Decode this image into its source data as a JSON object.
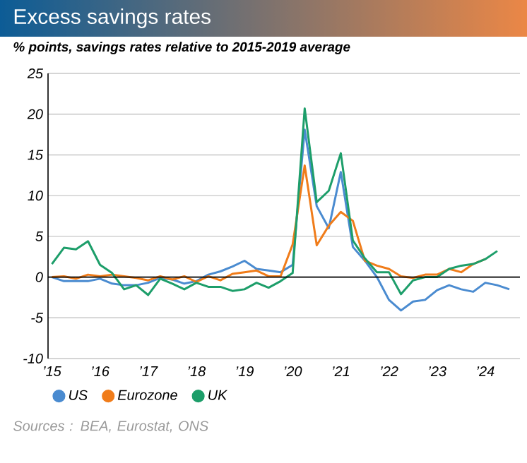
{
  "chart_data": {
    "type": "line",
    "title": "Excess savings rates",
    "subtitle": "% points, savings rates relative to 2015-2019 average",
    "xlim": [
      2014.92,
      2024.72
    ],
    "ylim": [
      -10,
      25
    ],
    "xticks": [
      {
        "value": 2015,
        "label": "’15"
      },
      {
        "value": 2016,
        "label": "’16"
      },
      {
        "value": 2017,
        "label": "’17"
      },
      {
        "value": 2018,
        "label": "’18"
      },
      {
        "value": 2019,
        "label": "’19"
      },
      {
        "value": 2020,
        "label": "’20"
      },
      {
        "value": 2021,
        "label": "’21"
      },
      {
        "value": 2022,
        "label": "’22"
      },
      {
        "value": 2023,
        "label": "’23"
      },
      {
        "value": 2024,
        "label": "’24"
      }
    ],
    "yticks": [
      -10,
      -5,
      0,
      5,
      10,
      15,
      20,
      25
    ],
    "grid": "y",
    "legend": "bottom",
    "ref_lines": [
      {
        "axis": "y",
        "value": 0,
        "color": "#000000"
      }
    ],
    "annotations": [
      "Sources : BEA, Eurostat, ONS"
    ],
    "series": [
      {
        "name": "US",
        "color": "#4a8bd0",
        "x": [
          2015.0,
          2015.25,
          2015.5,
          2015.75,
          2016.0,
          2016.25,
          2016.5,
          2016.75,
          2017.0,
          2017.25,
          2017.5,
          2017.75,
          2018.0,
          2018.25,
          2018.5,
          2018.75,
          2019.0,
          2019.25,
          2019.5,
          2019.75,
          2020.0,
          2020.25,
          2020.5,
          2020.75,
          2021.0,
          2021.25,
          2021.5,
          2021.75,
          2022.0,
          2022.25,
          2022.5,
          2022.75,
          2023.0,
          2023.25,
          2023.5,
          2023.75,
          2024.0,
          2024.25,
          2024.5
        ],
        "values": [
          0,
          -0.5,
          -0.5,
          -0.5,
          -0.2,
          -0.8,
          -1.0,
          -1.0,
          -0.7,
          -0.1,
          -0.3,
          -0.8,
          -0.5,
          0.3,
          0.7,
          1.3,
          2.0,
          1.0,
          0.8,
          0.6,
          1.5,
          18.1,
          8.7,
          6.0,
          12.9,
          3.7,
          2.0,
          0,
          -2.8,
          -4.1,
          -3.0,
          -2.8,
          -1.6,
          -1.0,
          -1.5,
          -1.8,
          -0.7,
          -1.0,
          -1.5
        ]
      },
      {
        "name": "Eurozone",
        "color": "#f07c1a",
        "x": [
          2015.0,
          2015.25,
          2015.5,
          2015.75,
          2016.0,
          2016.25,
          2016.5,
          2016.75,
          2017.0,
          2017.25,
          2017.5,
          2017.75,
          2018.0,
          2018.25,
          2018.5,
          2018.75,
          2019.0,
          2019.25,
          2019.5,
          2019.75,
          2020.0,
          2020.25,
          2020.5,
          2020.75,
          2021.0,
          2021.25,
          2021.5,
          2021.75,
          2022.0,
          2022.25,
          2022.5,
          2022.75,
          2023.0,
          2023.25,
          2023.5,
          2023.75,
          2024.0
        ],
        "values": [
          0,
          0.1,
          -0.2,
          0.3,
          0.1,
          0.3,
          0.1,
          -0.1,
          -0.4,
          0.1,
          -0.3,
          0.1,
          -0.6,
          0.1,
          -0.4,
          0.4,
          0.6,
          0.8,
          0.1,
          0.1,
          4.0,
          13.7,
          3.9,
          6.3,
          8.0,
          6.9,
          2.0,
          1.4,
          1.0,
          0.1,
          -0.1,
          0.3,
          0.3,
          1.0,
          0.6,
          1.6,
          2.2
        ]
      },
      {
        "name": "UK",
        "color": "#1d9e6a",
        "x": [
          2015.0,
          2015.25,
          2015.5,
          2015.75,
          2016.0,
          2016.25,
          2016.5,
          2016.75,
          2017.0,
          2017.25,
          2017.5,
          2017.75,
          2018.0,
          2018.25,
          2018.5,
          2018.75,
          2019.0,
          2019.25,
          2019.5,
          2019.75,
          2020.0,
          2020.25,
          2020.5,
          2020.75,
          2021.0,
          2021.25,
          2021.5,
          2021.75,
          2022.0,
          2022.25,
          2022.5,
          2022.75,
          2023.0,
          2023.25,
          2023.5,
          2023.75,
          2024.0,
          2024.25
        ],
        "values": [
          1.6,
          3.6,
          3.4,
          4.4,
          1.5,
          0.5,
          -1.5,
          -1.0,
          -2.2,
          -0.2,
          -0.8,
          -1.5,
          -0.7,
          -1.2,
          -1.2,
          -1.7,
          -1.5,
          -0.7,
          -1.3,
          -0.5,
          0.5,
          20.7,
          9.2,
          10.6,
          15.2,
          4.5,
          2.3,
          0.6,
          0.6,
          -2.1,
          -0.4,
          0,
          0,
          1.0,
          1.4,
          1.6,
          2.2,
          3.2
        ]
      }
    ]
  }
}
